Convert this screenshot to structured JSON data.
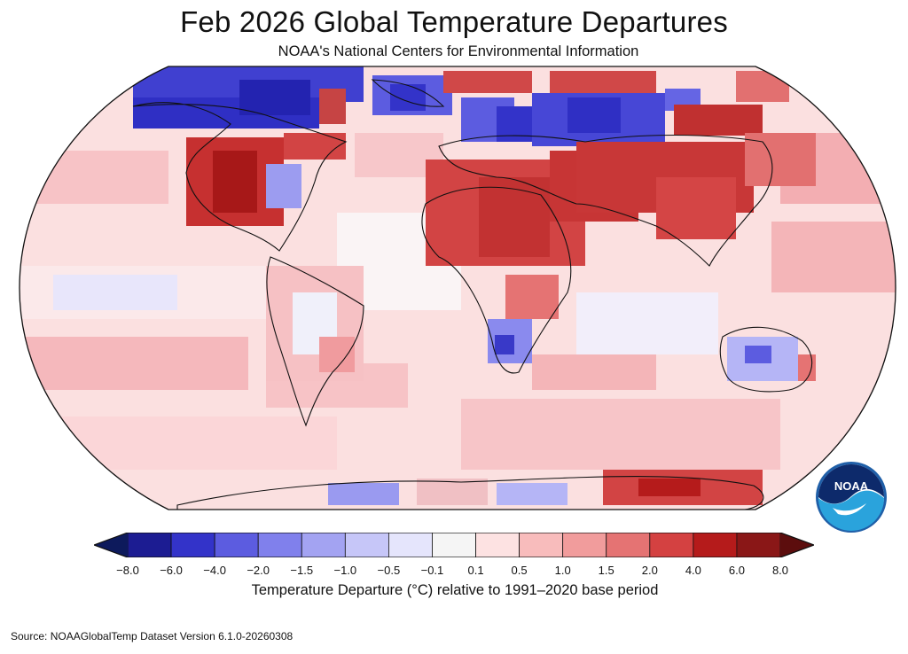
{
  "title": "Feb 2026 Global Temperature Departures",
  "subtitle": "NOAA's National Centers for Environmental Information",
  "logo": {
    "text": "NOAA",
    "colors": {
      "ring": "#1f5fa8",
      "navy": "#0d2a6b",
      "light": "#2aa3dc",
      "white": "#ffffff"
    }
  },
  "colorbar": {
    "label": "Temperature Departure (°C) relative to 1991–2020 base period",
    "ticks": [
      "−8.0",
      "−6.0",
      "−4.0",
      "−2.0",
      "−1.5",
      "−1.0",
      "−0.5",
      "−0.1",
      "0.1",
      "0.5",
      "1.0",
      "1.5",
      "2.0",
      "4.0",
      "6.0",
      "8.0"
    ],
    "colors": [
      "#1c1c92",
      "#3333c9",
      "#5c5ce0",
      "#8080ec",
      "#a3a3f2",
      "#c6c6f8",
      "#e5e5fc",
      "#f5f5f5",
      "#fde2e2",
      "#f8bcbc",
      "#f19c9c",
      "#e57373",
      "#d44141",
      "#b51b1b",
      "#8a1717"
    ],
    "under_color": "#0d1a5c",
    "over_color": "#5c0d0d"
  },
  "source": "Source: NOAAGlobalTemp Dataset Version 6.1.0-20260308",
  "map": {
    "projection": "Robinson",
    "ocean_base_color": "#f8d4d4",
    "regions": [
      {
        "name": "Arctic Canada / Greenland",
        "departure_class": "-6.0 to -4.0",
        "color": "#3333c9"
      },
      {
        "name": "Northern Europe",
        "departure_class": "-4.0 to -2.0",
        "color": "#5c5ce0"
      },
      {
        "name": "Western Russia",
        "departure_class": "-4.0 to -2.0",
        "color": "#5c5ce0"
      },
      {
        "name": "Western United States",
        "departure_class": "4.0 to 6.0",
        "color": "#b51b1b"
      },
      {
        "name": "North Africa and Middle East",
        "departure_class": "2.0 to 4.0",
        "color": "#d44141"
      },
      {
        "name": "Central Asia and China",
        "departure_class": "2.0 to 4.0",
        "color": "#d44141"
      },
      {
        "name": "Southern Africa",
        "departure_class": "-2.0 to -1.0",
        "color": "#8080ec"
      },
      {
        "name": "Central Australia",
        "departure_class": "-2.0 to -1.0",
        "color": "#8080ec"
      },
      {
        "name": "Antarctica",
        "departure_class": "2.0 to 4.0",
        "color": "#d44141"
      }
    ]
  }
}
